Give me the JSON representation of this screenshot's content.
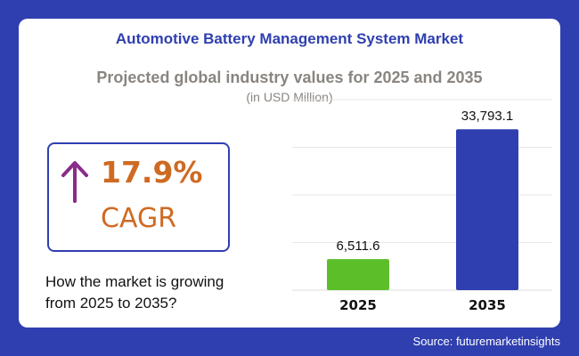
{
  "header": {
    "title": "Automotive Battery Management System Market",
    "subtitle": "Projected global industry values for 2025 and 2035",
    "unit": "(in USD Million)"
  },
  "cagr": {
    "value": "17.9%",
    "label": "CAGR",
    "arrow_icon": "up-arrow-icon"
  },
  "growth_text": {
    "line1": "How the market is growing",
    "line2": "from 2025 to 2035?"
  },
  "source": "Source: futuremarketinsights",
  "colors": {
    "background": "#2f3fb0",
    "title": "#2f3fb0",
    "accent": "#cf6a22",
    "arrow": "#8a2b8a",
    "bar_2025": "#5cbf2a",
    "bar_2035": "#2f3fb0"
  },
  "chart_data": {
    "type": "bar",
    "categories": [
      "2025",
      "2035"
    ],
    "values": [
      6511.6,
      33793.1
    ],
    "value_labels": [
      "6,511.6",
      "33,793.1"
    ],
    "bar_colors": [
      "#5cbf2a",
      "#2f3fb0"
    ],
    "ylim": [
      0,
      40000
    ],
    "grid": true,
    "legend": "none"
  }
}
